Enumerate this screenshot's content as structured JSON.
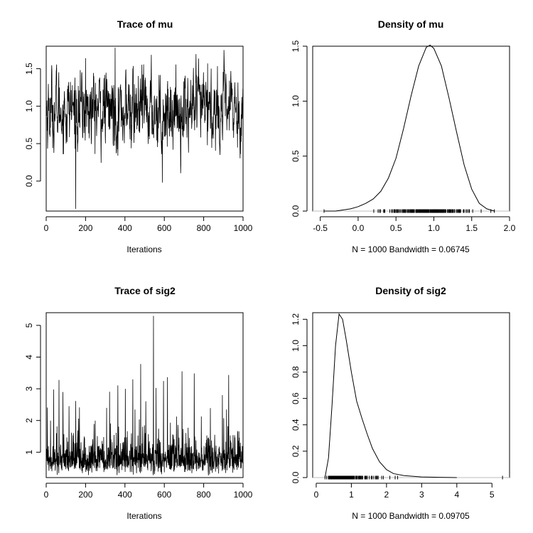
{
  "chart_data": [
    {
      "type": "line",
      "title": "Trace of mu",
      "xlabel": "Iterations",
      "ylabel": "",
      "xlim": [
        0,
        1000
      ],
      "ylim": [
        -0.4,
        1.8
      ],
      "xticks": [
        0,
        200,
        400,
        600,
        800,
        1000
      ],
      "yticks": [
        0.0,
        0.5,
        1.0,
        1.5
      ],
      "ytick_labels": [
        "0.0",
        "0.5",
        "1.0",
        "1.5"
      ],
      "trace_summary": {
        "n": 1000,
        "center": 0.95,
        "sd": 0.24,
        "min": -0.37,
        "max": 1.78
      },
      "notable_points": [
        {
          "x": 150,
          "y": -0.37
        },
        {
          "x": 350,
          "y": 1.78
        },
        {
          "x": 200,
          "y": 1.64
        },
        {
          "x": 820,
          "y": 1.57
        },
        {
          "x": 590,
          "y": -0.02
        }
      ]
    },
    {
      "type": "line",
      "title": "Density of mu",
      "xlabel": "N = 1000   Bandwidth = 0.06745",
      "ylabel": "",
      "xlim": [
        -0.6,
        2.0
      ],
      "ylim": [
        0,
        1.5
      ],
      "xticks": [
        -0.5,
        0.0,
        0.5,
        1.0,
        1.5,
        2.0
      ],
      "xtick_labels": [
        "-0.5",
        "0.0",
        "0.5",
        "1.0",
        "1.5",
        "2.0"
      ],
      "yticks": [
        0.0,
        0.5,
        1.0,
        1.5
      ],
      "ytick_labels": [
        "0.0",
        "0.5",
        "1.0",
        "1.5"
      ],
      "x": [
        -0.45,
        -0.3,
        -0.1,
        0.0,
        0.1,
        0.2,
        0.3,
        0.4,
        0.5,
        0.6,
        0.7,
        0.8,
        0.9,
        0.95,
        1.0,
        1.1,
        1.2,
        1.3,
        1.4,
        1.5,
        1.6,
        1.7,
        1.8
      ],
      "y": [
        0.0,
        0.0,
        0.02,
        0.04,
        0.07,
        0.11,
        0.18,
        0.3,
        0.48,
        0.75,
        1.05,
        1.32,
        1.49,
        1.51,
        1.48,
        1.32,
        1.03,
        0.72,
        0.42,
        0.2,
        0.07,
        0.02,
        0.0
      ],
      "rug_range": [
        -0.45,
        1.8
      ]
    },
    {
      "type": "line",
      "title": "Trace of sig2",
      "xlabel": "Iterations",
      "ylabel": "",
      "xlim": [
        0,
        1000
      ],
      "ylim": [
        0.2,
        5.4
      ],
      "xticks": [
        0,
        200,
        400,
        600,
        800,
        1000
      ],
      "yticks": [
        1,
        2,
        3,
        4,
        5
      ],
      "ytick_labels": [
        "1",
        "2",
        "3",
        "4",
        "5"
      ],
      "trace_summary": {
        "n": 1000,
        "center": 0.85,
        "sd": 0.4,
        "min": 0.25,
        "max": 5.3
      },
      "notable_points": [
        {
          "x": 545,
          "y": 5.3
        },
        {
          "x": 480,
          "y": 3.78
        },
        {
          "x": 690,
          "y": 3.55
        },
        {
          "x": 65,
          "y": 3.28
        },
        {
          "x": 440,
          "y": 3.3
        }
      ]
    },
    {
      "type": "line",
      "title": "Density of sig2",
      "xlabel": "N = 1000   Bandwidth = 0.09705",
      "ylabel": "",
      "xlim": [
        -0.1,
        5.5
      ],
      "ylim": [
        0,
        1.25
      ],
      "xticks": [
        0,
        1,
        2,
        3,
        4,
        5
      ],
      "xtick_labels": [
        "0",
        "1",
        "2",
        "3",
        "4",
        "5"
      ],
      "yticks": [
        0.0,
        0.2,
        0.4,
        0.6,
        0.8,
        1.0,
        1.2
      ],
      "ytick_labels": [
        "0.0",
        "0.2",
        "0.4",
        "0.6",
        "0.8",
        "1.0",
        "1.2"
      ],
      "x": [
        0.25,
        0.35,
        0.45,
        0.55,
        0.65,
        0.75,
        0.85,
        1.0,
        1.15,
        1.3,
        1.45,
        1.6,
        1.8,
        2.0,
        2.2,
        2.5,
        3.0,
        3.5,
        4.0
      ],
      "y": [
        0.0,
        0.15,
        0.55,
        1.0,
        1.24,
        1.2,
        1.05,
        0.8,
        0.58,
        0.45,
        0.33,
        0.22,
        0.12,
        0.06,
        0.03,
        0.015,
        0.005,
        0.002,
        0.0
      ],
      "rug_range": [
        0.25,
        5.3
      ]
    }
  ]
}
